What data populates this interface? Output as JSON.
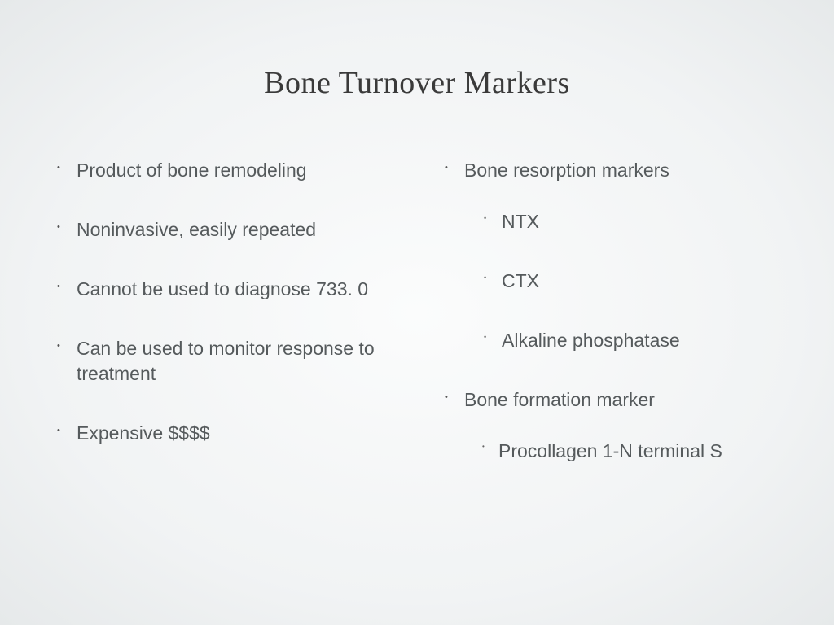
{
  "slide": {
    "title": "Bone Turnover Markers",
    "title_fontsize": 38,
    "title_color": "#3a3a3a",
    "body_fontsize": 23,
    "body_color": "#555a5c",
    "background_center": "#fbfcfc",
    "background_edge": "#e6e9ea",
    "left_column": {
      "items": [
        "Product of bone remodeling",
        "Noninvasive, easily repeated",
        "Cannot be used to diagnose 733. 0",
        "Can be used to monitor response to treatment",
        "Expensive $$$$"
      ]
    },
    "right_column": {
      "items": [
        {
          "text": "Bone resorption markers",
          "children": [
            {
              "text": "NTX"
            },
            {
              "text": "CTX"
            },
            {
              "text": "Alkaline phosphatase"
            }
          ]
        },
        {
          "text": "Bone formation marker",
          "children": [
            {
              "text": "Procollagen 1-N terminal S"
            }
          ]
        }
      ]
    }
  }
}
